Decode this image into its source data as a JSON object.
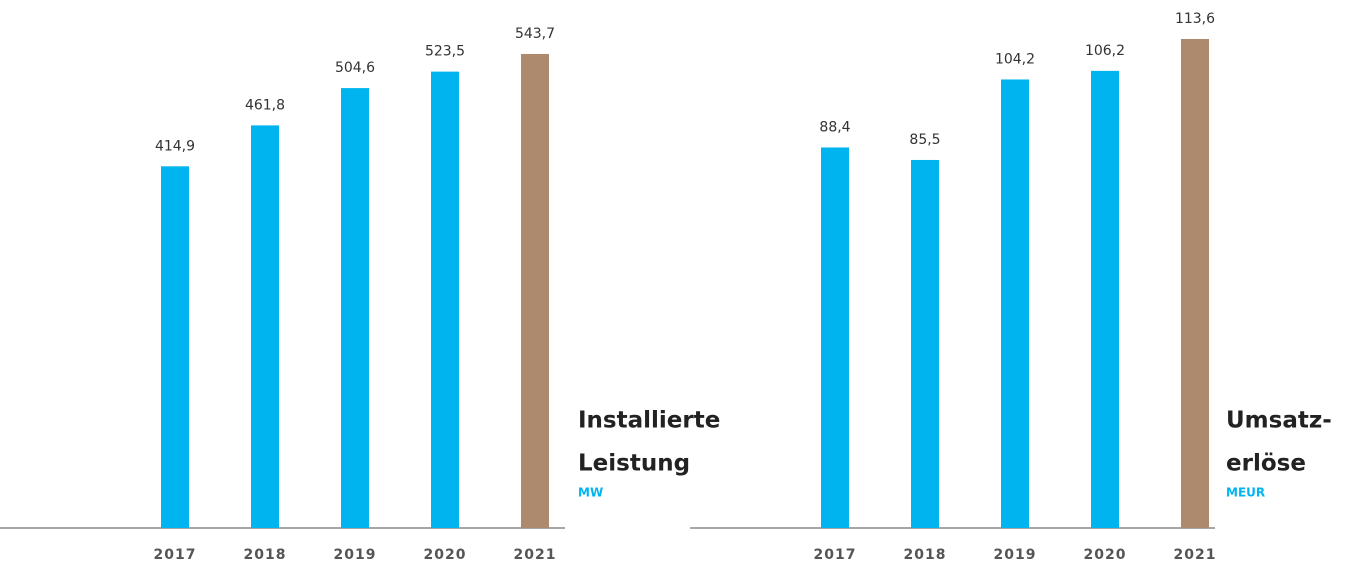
{
  "chart_data": [
    {
      "type": "bar",
      "title": [
        "Installierte",
        "Leistung"
      ],
      "subtitle": "MW",
      "categories": [
        "2017",
        "2018",
        "2019",
        "2020",
        "2021"
      ],
      "values": [
        414.9,
        461.8,
        504.6,
        523.5,
        543.7
      ],
      "value_labels": [
        "414,9",
        "461,8",
        "504,6",
        "523,5",
        "543,7"
      ],
      "colors": [
        "#00b5ef",
        "#00b5ef",
        "#00b5ef",
        "#00b5ef",
        "#ad8a6e"
      ]
    },
    {
      "type": "bar",
      "title": [
        "Umsatz-",
        "erlöse"
      ],
      "subtitle": "MEUR",
      "categories": [
        "2017",
        "2018",
        "2019",
        "2020",
        "2021"
      ],
      "values": [
        88.4,
        85.5,
        104.2,
        106.2,
        113.6
      ],
      "value_labels": [
        "88,4",
        "85,5",
        "104,2",
        "106,2",
        "113,6"
      ],
      "colors": [
        "#00b5ef",
        "#00b5ef",
        "#00b5ef",
        "#00b5ef",
        "#ad8a6e"
      ]
    }
  ]
}
